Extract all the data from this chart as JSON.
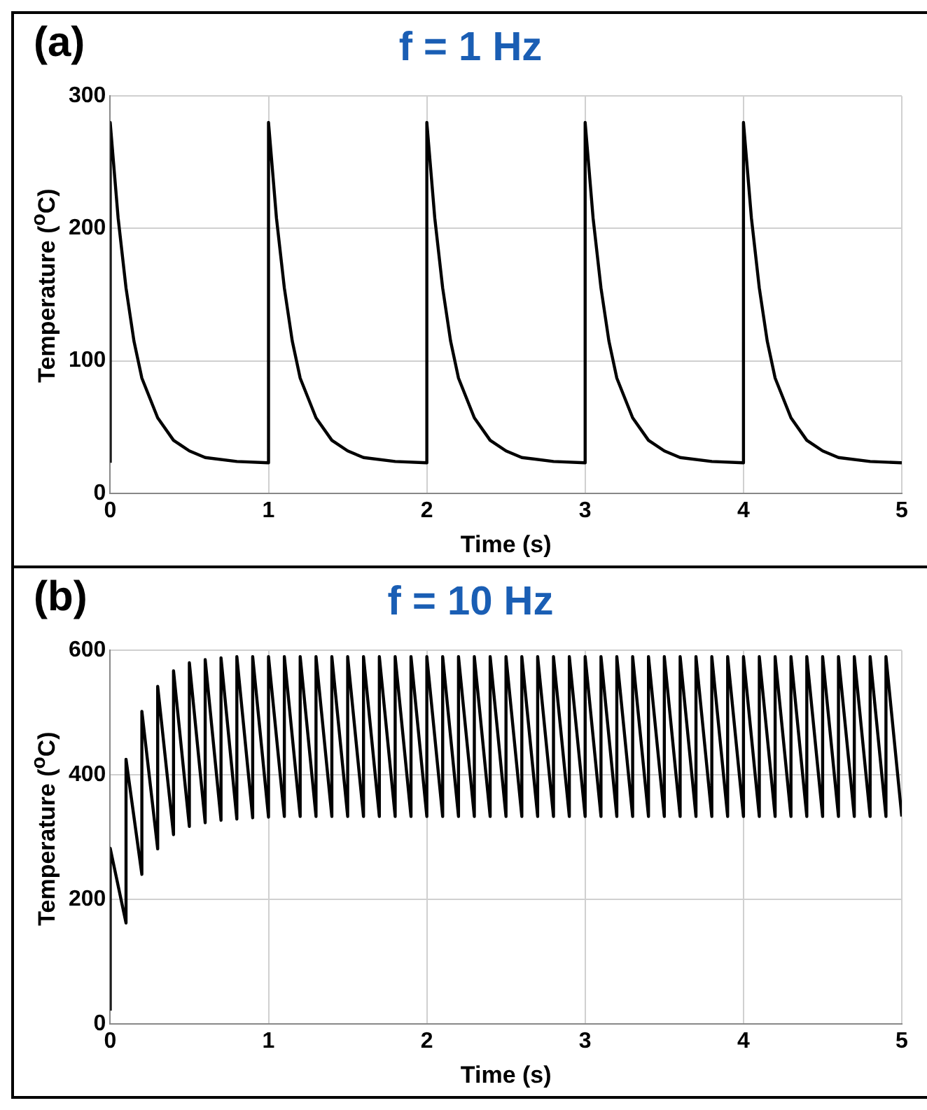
{
  "chart_data": [
    {
      "type": "line",
      "title": "f = 1 Hz",
      "xlabel": "Time (s)",
      "ylabel": "Temperature ($^{o}$C)",
      "annotations": [
        "(a)"
      ],
      "series": [
        {
          "color": "#000000",
          "x": [
            0,
            0,
            0.05,
            0.1,
            0.15,
            0.2,
            0.3,
            0.4,
            0.5,
            0.6,
            0.8,
            1,
            1,
            1.05,
            1.1,
            1.15,
            1.2,
            1.3,
            1.4,
            1.5,
            1.6,
            1.8,
            2,
            2,
            2.05,
            2.1,
            2.15,
            2.2,
            2.3,
            2.4,
            2.5,
            2.6,
            2.8,
            3,
            3,
            3.05,
            3.1,
            3.15,
            3.2,
            3.3,
            3.4,
            3.5,
            3.6,
            3.8,
            4,
            4,
            4.05,
            4.1,
            4.15,
            4.2,
            4.3,
            4.4,
            4.5,
            4.6,
            4.8,
            5
          ],
          "values": [
            23,
            280,
            208,
            155,
            115,
            87,
            57,
            40,
            32,
            27,
            24,
            23,
            280,
            208,
            155,
            115,
            87,
            57,
            40,
            32,
            27,
            24,
            23,
            280,
            208,
            155,
            115,
            87,
            57,
            40,
            32,
            27,
            24,
            23,
            280,
            208,
            155,
            115,
            87,
            57,
            40,
            32,
            27,
            24,
            23,
            280,
            208,
            155,
            115,
            87,
            57,
            40,
            32,
            27,
            24,
            23
          ]
        }
      ],
      "xlim": [
        0,
        5
      ],
      "xticks": [
        0,
        1,
        2,
        3,
        4,
        5
      ],
      "ylim": [
        0,
        300
      ],
      "yticks": [
        0,
        100,
        200,
        300
      ],
      "grid": true,
      "legend": false,
      "marker": "none",
      "line_style": "solid"
    },
    {
      "type": "line",
      "title": "f = 10 Hz",
      "xlabel": "Time (s)",
      "ylabel": "Temperature ($^{o}$C)",
      "annotations": [
        "(b)"
      ],
      "series": [
        {
          "color": "#000000",
          "x": [
            0,
            0,
            0.1,
            0.1,
            0.2,
            0.2,
            0.3,
            0.3,
            0.4,
            0.4,
            0.5,
            0.5,
            0.6,
            0.6,
            0.7,
            0.7,
            0.8,
            0.8,
            0.9,
            0.9,
            1,
            1,
            1.1,
            1.1,
            1.2,
            1.2,
            1.3,
            1.3,
            1.4,
            1.4,
            1.5,
            1.5,
            1.6,
            1.6,
            1.7,
            1.7,
            1.8,
            1.8,
            1.9,
            1.9,
            2,
            2,
            2.1,
            2.1,
            2.2,
            2.2,
            2.3,
            2.3,
            2.4,
            2.4,
            2.5,
            2.5,
            2.6,
            2.6,
            2.7,
            2.7,
            2.8,
            2.8,
            2.9,
            2.9,
            3,
            3,
            3.1,
            3.1,
            3.2,
            3.2,
            3.3,
            3.3,
            3.4,
            3.4,
            3.5,
            3.5,
            3.6,
            3.6,
            3.7,
            3.7,
            3.8,
            3.8,
            3.9,
            3.9,
            4,
            4,
            4.1,
            4.1,
            4.2,
            4.2,
            4.3,
            4.3,
            4.4,
            4.4,
            4.5,
            4.5,
            4.6,
            4.6,
            4.7,
            4.7,
            4.8,
            4.8,
            4.9,
            4.9,
            5
          ],
          "values": [
            21,
            282,
            162,
            425,
            240,
            502,
            281,
            542,
            304,
            567,
            317,
            580,
            323,
            585,
            327,
            588,
            329,
            590,
            331,
            590,
            332,
            590,
            333,
            590,
            333,
            590,
            333,
            590,
            333,
            590,
            333,
            590,
            333,
            590,
            333,
            590,
            333,
            590,
            333,
            590,
            333,
            590,
            333,
            590,
            333,
            590,
            333,
            590,
            333,
            590,
            333,
            590,
            333,
            590,
            333,
            590,
            333,
            590,
            333,
            590,
            333,
            590,
            333,
            590,
            333,
            590,
            333,
            590,
            333,
            590,
            333,
            590,
            333,
            590,
            333,
            590,
            333,
            590,
            333,
            590,
            333,
            590,
            333,
            590,
            333,
            590,
            333,
            590,
            333,
            590,
            333,
            590,
            333,
            590,
            333,
            590,
            333,
            590,
            333,
            590,
            333
          ]
        }
      ],
      "xlim": [
        0,
        5
      ],
      "xticks": [
        0,
        1,
        2,
        3,
        4,
        5
      ],
      "ylim": [
        0,
        600
      ],
      "yticks": [
        0,
        200,
        400,
        600
      ],
      "grid": true,
      "legend": false,
      "marker": "none",
      "line_style": "solid"
    }
  ]
}
